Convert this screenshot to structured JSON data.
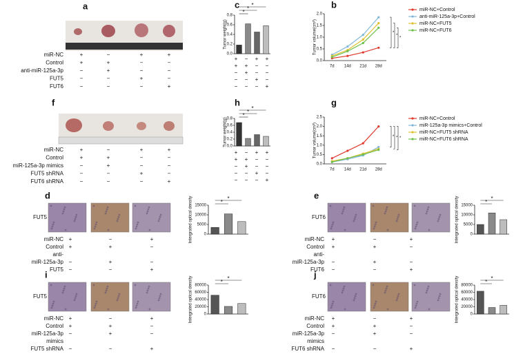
{
  "panels": [
    {
      "letter": "a",
      "table": {
        "rows": [
          {
            "label": "miR-NC",
            "signs": [
              "+",
              "−",
              "+",
              "+"
            ]
          },
          {
            "label": "Control",
            "signs": [
              "+",
              "+",
              "−",
              "−"
            ]
          },
          {
            "label": "anti-miR-125a-3p",
            "signs": [
              "−",
              "+",
              "−",
              "−"
            ]
          },
          {
            "label": "FUT5",
            "signs": [
              "−",
              "−",
              "+",
              "−"
            ]
          },
          {
            "label": "FUT6",
            "signs": [
              "−",
              "−",
              "−",
              "+"
            ]
          }
        ]
      }
    },
    {
      "letter": "c",
      "table": {
        "rows": [
          {
            "signs": [
              "+",
              "−",
              "+",
              "+"
            ]
          },
          {
            "signs": [
              "+",
              "+",
              "−",
              "−"
            ]
          },
          {
            "signs": [
              "−",
              "+",
              "−",
              "−"
            ]
          },
          {
            "signs": [
              "−",
              "−",
              "+",
              "−"
            ]
          },
          {
            "signs": [
              "−",
              "−",
              "−",
              "+"
            ]
          }
        ]
      }
    },
    {
      "letter": "b"
    },
    {
      "letter": "f",
      "table": {
        "rows": [
          {
            "label": "miR-NC",
            "signs": [
              "+",
              "−",
              "+",
              "+"
            ]
          },
          {
            "label": "Control",
            "signs": [
              "+",
              "+",
              "−",
              "−"
            ]
          },
          {
            "label": "miR-125a-3p mimics",
            "signs": [
              "−",
              "+",
              "−",
              "−"
            ]
          },
          {
            "label": "FUT5 shRNA",
            "signs": [
              "−",
              "−",
              "+",
              "−"
            ]
          },
          {
            "label": "FUT6 shRNA",
            "signs": [
              "−",
              "−",
              "−",
              "+"
            ]
          }
        ]
      }
    },
    {
      "letter": "h",
      "table": {
        "rows": [
          {
            "signs": [
              "+",
              "−",
              "+",
              "+"
            ]
          },
          {
            "signs": [
              "+",
              "+",
              "−",
              "−"
            ]
          },
          {
            "signs": [
              "−",
              "+",
              "−",
              "−"
            ]
          },
          {
            "signs": [
              "−",
              "−",
              "+",
              "−"
            ]
          },
          {
            "signs": [
              "−",
              "−",
              "−",
              "+"
            ]
          }
        ]
      }
    },
    {
      "letter": "g"
    },
    {
      "letter": "d",
      "image_label": "FUT5",
      "table": {
        "rows": [
          {
            "label": "miR-NC",
            "signs": [
              "+",
              "−",
              "+"
            ]
          },
          {
            "label": "Control",
            "signs": [
              "+",
              "+",
              "−"
            ]
          },
          {
            "label": "anti-"
          },
          {
            "label": "miR-125a-3p",
            "signs": [
              "−",
              "+",
              "−"
            ]
          },
          {
            "label": "FUT5",
            "signs": [
              "−",
              "−",
              "+"
            ]
          }
        ]
      }
    },
    {
      "letter": "e",
      "image_label": "FUT6",
      "table": {
        "rows": [
          {
            "label": "miR-NC",
            "signs": [
              "+",
              "−",
              "+"
            ]
          },
          {
            "label": "Control",
            "signs": [
              "+",
              "+",
              "−"
            ]
          },
          {
            "label": "anti-"
          },
          {
            "label": "miR-125a-3p",
            "signs": [
              "−",
              "+",
              "−"
            ]
          },
          {
            "label": "FUT6",
            "signs": [
              "−",
              "−",
              "+"
            ]
          }
        ]
      }
    },
    {
      "letter": "i",
      "image_label": "FUT5",
      "table": {
        "rows": [
          {
            "label": "miR-NC",
            "signs": [
              "+",
              "−",
              "+"
            ]
          },
          {
            "label": "Control",
            "signs": [
              "+",
              "+",
              "−"
            ]
          },
          {
            "label": "miR-125a-3p",
            "signs": [
              "−",
              "+",
              "−"
            ]
          },
          {
            "label": "mimics"
          },
          {
            "label": "FUT5 shRNA",
            "signs": [
              "−",
              "−",
              "+"
            ]
          }
        ]
      }
    },
    {
      "letter": "j",
      "image_label": "FUT6",
      "table": {
        "rows": [
          {
            "label": "miR-NC",
            "signs": [
              "+",
              "−",
              "+"
            ]
          },
          {
            "label": "Control",
            "signs": [
              "+",
              "+",
              "−"
            ]
          },
          {
            "label": "miR-125a-3p",
            "signs": [
              "−",
              "+",
              "−"
            ]
          },
          {
            "label": "mimics"
          },
          {
            "label": "FUT6 shRNA",
            "signs": [
              "−",
              "−",
              "+"
            ]
          }
        ]
      }
    }
  ],
  "chart_data": [
    {
      "type": "bar",
      "y_label": "Tumor weight(g)",
      "values": [
        0.18,
        0.62,
        0.45,
        0.58
      ],
      "colors": [
        "#333333",
        "#8a8a8a",
        "#666666",
        "#bdbdbd"
      ],
      "ylim": [
        0,
        0.8
      ],
      "yticks": [
        {
          "value": 0,
          "label": "0.0"
        },
        {
          "value": 0.2,
          "label": "0.2"
        },
        {
          "value": 0.4,
          "label": "0.4"
        },
        {
          "value": 0.6,
          "label": "0.6"
        },
        {
          "value": 0.8,
          "label": "0.8"
        }
      ],
      "significance": "*"
    },
    {
      "type": "line",
      "y_label": "Tumor volume(cm³)",
      "categories": [
        "7d",
        "14d",
        "21d",
        "28d"
      ],
      "ylim": [
        0,
        2
      ],
      "yticks": [
        {
          "value": 0,
          "label": "0.0"
        },
        {
          "value": 0.5,
          "label": "0.5"
        },
        {
          "value": 1,
          "label": "1.0"
        },
        {
          "value": 1.5,
          "label": "1.5"
        },
        {
          "value": 2,
          "label": "2.0"
        }
      ],
      "significance": "*",
      "series": [
        {
          "name": "miR-NC+Control",
          "color": "#e03a2f",
          "values": [
            0.1,
            0.2,
            0.35,
            0.55
          ]
        },
        {
          "name": "anti-miR-125a-3p+Control",
          "color": "#7fb6d9",
          "values": [
            0.25,
            0.6,
            1.1,
            1.85
          ]
        },
        {
          "name": "miR-NC+FUT5",
          "color": "#e0c030",
          "values": [
            0.2,
            0.45,
            0.9,
            1.6
          ]
        },
        {
          "name": "miR-NC+FUT6",
          "color": "#6cc04a",
          "values": [
            0.15,
            0.4,
            0.75,
            1.4
          ]
        }
      ]
    },
    {
      "type": "bar",
      "y_label": "Tumor weight(g)",
      "values": [
        0.68,
        0.22,
        0.33,
        0.28
      ],
      "colors": [
        "#333333",
        "#8a8a8a",
        "#666666",
        "#bdbdbd"
      ],
      "ylim": [
        0,
        0.8
      ],
      "yticks": [
        {
          "value": 0,
          "label": "0.0"
        },
        {
          "value": 0.2,
          "label": "0.2"
        },
        {
          "value": 0.4,
          "label": "0.4"
        },
        {
          "value": 0.6,
          "label": "0.6"
        },
        {
          "value": 0.8,
          "label": "0.8"
        }
      ],
      "significance": "*"
    },
    {
      "type": "line",
      "y_label": "Tumor volume(cm³)",
      "categories": [
        "7d",
        "14d",
        "21d",
        "28d"
      ],
      "ylim": [
        0,
        2.5
      ],
      "yticks": [
        {
          "value": 0,
          "label": "0.0"
        },
        {
          "value": 0.5,
          "label": "0.5"
        },
        {
          "value": 1,
          "label": "1.0"
        },
        {
          "value": 1.5,
          "label": "1.5"
        },
        {
          "value": 2,
          "label": "2.0"
        },
        {
          "value": 2.5,
          "label": "2.5"
        }
      ],
      "significance": "*",
      "series": [
        {
          "name": "miR-NC+Control",
          "color": "#e03a2f",
          "values": [
            0.3,
            0.7,
            1.1,
            2.0
          ]
        },
        {
          "name": "miR-125a-3p mimics+Control",
          "color": "#7fb6d9",
          "values": [
            0.1,
            0.25,
            0.45,
            0.9
          ]
        },
        {
          "name": "miR-NC+FUT5 shRNA",
          "color": "#e0c030",
          "values": [
            0.15,
            0.3,
            0.55,
            0.8
          ]
        },
        {
          "name": "miR-NC+FUT6 shRNA",
          "color": "#6cc04a",
          "values": [
            0.1,
            0.3,
            0.5,
            0.75
          ]
        }
      ]
    },
    {
      "type": "bar",
      "y_label": "Intergrated optical density",
      "values": [
        3500,
        10500,
        6500
      ],
      "colors": [
        "#555555",
        "#8a8a8a",
        "#bdbdbd"
      ],
      "ylim": [
        0,
        15000
      ],
      "yticks": [
        0,
        5000,
        10000,
        15000
      ],
      "significance": "*"
    },
    {
      "type": "bar",
      "y_label": "Intergrated optical density",
      "values": [
        5000,
        11000,
        7500
      ],
      "colors": [
        "#555555",
        "#8a8a8a",
        "#bdbdbd"
      ],
      "ylim": [
        0,
        15000
      ],
      "yticks": [
        0,
        5000,
        10000,
        15000
      ],
      "significance": "*"
    },
    {
      "type": "bar",
      "y_label": "Intergrated optical density",
      "values": [
        52000,
        21000,
        29000
      ],
      "colors": [
        "#555555",
        "#8a8a8a",
        "#bdbdbd"
      ],
      "ylim": [
        0,
        80000
      ],
      "yticks": [
        0,
        20000,
        40000,
        60000,
        80000
      ],
      "significance": "*"
    },
    {
      "type": "bar",
      "y_label": "Intergrated optical density",
      "values": [
        63000,
        18000,
        24000
      ],
      "colors": [
        "#555555",
        "#8a8a8a",
        "#bdbdbd"
      ],
      "ylim": [
        0,
        80000
      ],
      "yticks": [
        0,
        20000,
        40000,
        60000,
        80000
      ],
      "significance": "*"
    }
  ]
}
